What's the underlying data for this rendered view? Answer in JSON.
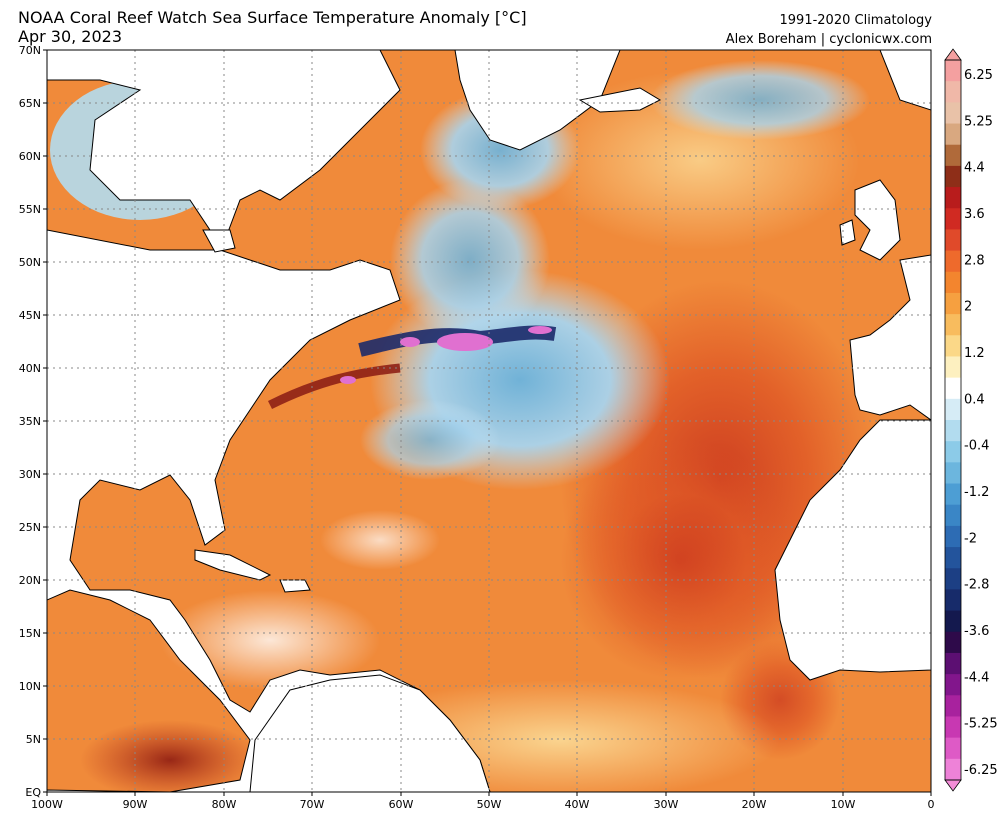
{
  "header": {
    "title_line1": "NOAA Coral Reef Watch Sea Surface Temperature Anomaly [°C]",
    "title_line2": "Apr 30, 2023",
    "climatology": "1991-2020 Climatology",
    "credit": "Alex Boreham | cyclonicwx.com"
  },
  "map": {
    "lat_ticks": [
      "70N",
      "65N",
      "60N",
      "55N",
      "50N",
      "45N",
      "40N",
      "35N",
      "30N",
      "25N",
      "20N",
      "15N",
      "10N",
      "5N",
      "EQ"
    ],
    "lon_ticks": [
      "100W",
      "90W",
      "80W",
      "70W",
      "60W",
      "50W",
      "40W",
      "30W",
      "20W",
      "10W",
      "0"
    ]
  },
  "colorbar": {
    "labels": [
      "6.25",
      "5.25",
      "4.4",
      "3.6",
      "2.8",
      "2",
      "1.2",
      "0.4",
      "-0.4",
      "-1.2",
      "-2",
      "-2.8",
      "-3.6",
      "-4.4",
      "-5.25",
      "-6.25"
    ],
    "colors": [
      "#f4a0a0",
      "#f0b8a8",
      "#e9c2a8",
      "#d9a880",
      "#b06a3a",
      "#8e2e18",
      "#b81c1c",
      "#d02a22",
      "#e04a2a",
      "#ee6a2c",
      "#f3852e",
      "#f6a040",
      "#f8bc5e",
      "#fbd888",
      "#fdf0c0",
      "#ffffff",
      "#d6ecf6",
      "#b2dcef",
      "#8ccbe8",
      "#6cb6de",
      "#4d9ed4",
      "#3a86c6",
      "#2d6cb4",
      "#23549c",
      "#1c3f84",
      "#172b6a",
      "#14194e",
      "#2e0a4a",
      "#5c0f72",
      "#82168c",
      "#a8229e",
      "#c838b2",
      "#de5ac6",
      "#ee82d8"
    ]
  },
  "legend_colors": {
    "land": "#ffffff",
    "ocean_warm": "#ee7a30",
    "ocean_neutral": "#ffffff",
    "ocean_cool": "#a8d4ee",
    "ocean_cold": "#1c3f84",
    "extreme_cold": "#e070d0"
  }
}
